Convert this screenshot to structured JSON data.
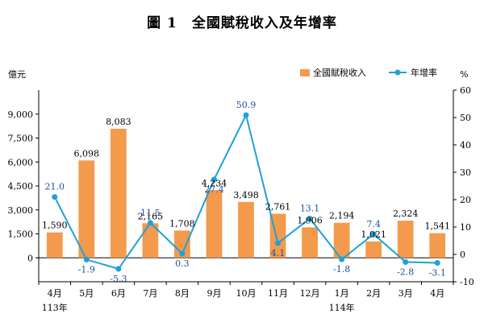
{
  "title": {
    "figure_no": "圖 1",
    "text": "全國賦稅收入及年增率"
  },
  "chart_data": {
    "type": "bar+line",
    "categories": [
      "4月",
      "5月",
      "6月",
      "7月",
      "8月",
      "9月",
      "10月",
      "11月",
      "12月",
      "1月",
      "2月",
      "3月",
      "4月"
    ],
    "year_labels": [
      {
        "index": 0,
        "label": "113年"
      },
      {
        "index": 9,
        "label": "114年"
      }
    ],
    "bar_series": {
      "name": "全國賦稅收入",
      "color": "#f39a4c",
      "values": [
        1590,
        6098,
        8083,
        2165,
        1708,
        4234,
        3498,
        2761,
        1906,
        2194,
        1021,
        2324,
        1541
      ],
      "labels": [
        "1,590",
        "6,098",
        "8,083",
        "2,165",
        "1,708",
        "4,234",
        "3,498",
        "2,761",
        "1,906",
        "2,194",
        "1,021",
        "2,324",
        "1,541"
      ]
    },
    "line_series": {
      "name": "年增率",
      "color": "#1ea1dc",
      "values": [
        21.0,
        -1.9,
        -5.3,
        11.5,
        0.3,
        27.4,
        50.9,
        4.1,
        13.1,
        -1.8,
        7.4,
        -2.8,
        -3.1
      ],
      "labels": [
        "21.0",
        "-1.9",
        "-5.3",
        "11.5",
        "0.3",
        "27.4",
        "50.9",
        "4.1",
        "13.1",
        "-1.8",
        "7.4",
        "-2.8",
        "-3.1"
      ]
    },
    "y_left": {
      "unit": "億元",
      "range": [
        -1500,
        10500
      ],
      "ticks": [
        0,
        1500,
        3000,
        4500,
        6000,
        7500,
        9000
      ],
      "tick_labels": [
        "0",
        "1,500",
        "3,000",
        "4,500",
        "6,000",
        "7,500",
        "9,000"
      ]
    },
    "y_right": {
      "unit": "%",
      "range": [
        -10,
        60
      ],
      "ticks": [
        -10,
        0,
        10,
        20,
        30,
        40,
        50,
        60
      ],
      "tick_labels": [
        "-10",
        "0",
        "10",
        "20",
        "30",
        "40",
        "50",
        "60"
      ]
    },
    "legend_position": "top-right",
    "grid": false
  }
}
